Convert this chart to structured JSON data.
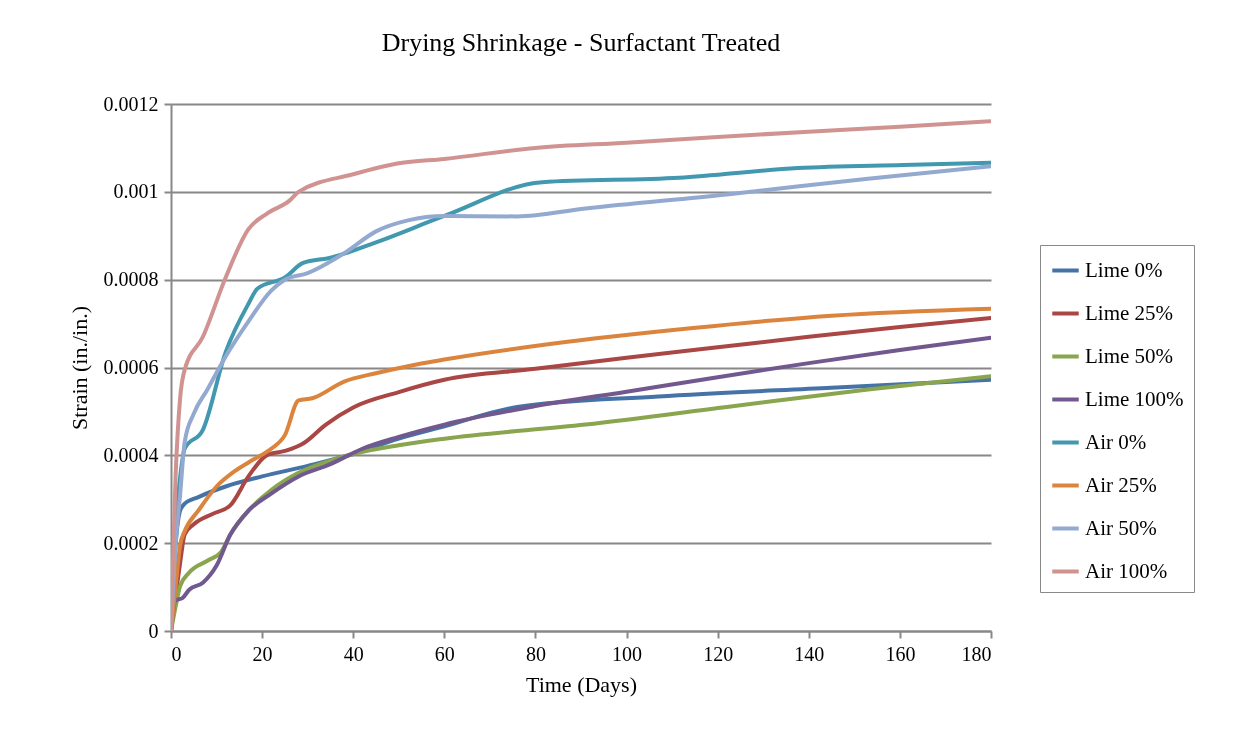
{
  "chart_data": {
    "type": "line",
    "title": "Drying Shrinkage - Surfactant Treated",
    "xlabel": "Time (Days)",
    "ylabel": "Strain (in./in.)",
    "xlim": [
      0,
      180
    ],
    "xticks": [
      0,
      20,
      40,
      60,
      80,
      100,
      120,
      140,
      160,
      180
    ],
    "ylim": [
      0,
      0.0012
    ],
    "yticks": [
      0,
      0.0002,
      0.0004,
      0.0006,
      0.0008,
      0.001,
      0.0012
    ],
    "grid": "y",
    "legend": "right",
    "marker": "none",
    "line_style": "solid",
    "series": [
      {
        "name": "Lime 0%",
        "color": "#4572a7",
        "x": [
          0,
          1,
          2,
          3,
          6,
          12,
          20,
          30,
          40,
          50,
          60,
          76,
          107,
          145,
          180
        ],
        "values": [
          0,
          0.000195,
          0.000274,
          0.00029,
          0.000305,
          0.000329,
          0.000352,
          0.000376,
          0.000403,
          0.000438,
          0.000466,
          0.00051,
          0.000534,
          0.000554,
          0.000572
        ]
      },
      {
        "name": "Lime 25%",
        "color": "#aa4643",
        "x": [
          0,
          1,
          2,
          3,
          5,
          9,
          13,
          17,
          21,
          25,
          29,
          34,
          40,
          50,
          60,
          80,
          100,
          120,
          140,
          160,
          180
        ],
        "values": [
          0,
          8e-05,
          0.000155,
          0.00022,
          0.000243,
          0.000266,
          0.000286,
          0.000352,
          0.0004,
          0.00041,
          0.000427,
          0.00047,
          0.000509,
          0.000544,
          0.000572,
          0.000597,
          0.000622,
          0.000646,
          0.00067,
          0.000692,
          0.000713
        ]
      },
      {
        "name": "Lime 50%",
        "color": "#89a54e",
        "x": [
          0,
          1,
          2,
          4,
          8,
          11,
          13,
          17,
          22,
          28,
          35,
          40,
          50,
          60,
          91,
          122,
          153,
          180
        ],
        "values": [
          0,
          5.5e-05,
          0.000102,
          0.000133,
          0.00016,
          0.00018,
          0.000219,
          0.000274,
          0.000321,
          0.00036,
          0.000388,
          0.000403,
          0.000423,
          0.000438,
          0.00047,
          0.00051,
          0.00055,
          0.00058
        ]
      },
      {
        "name": "Lime 100%",
        "color": "#71588f",
        "x": [
          0,
          1,
          2.5,
          4,
          7,
          10,
          13,
          17,
          22,
          28,
          35,
          42,
          50,
          60,
          80,
          100,
          120,
          140,
          160,
          180
        ],
        "values": [
          0,
          7e-05,
          7.5e-05,
          9.4e-05,
          0.00011,
          0.000149,
          0.000219,
          0.000274,
          0.000313,
          0.000352,
          0.00038,
          0.000415,
          0.000442,
          0.00047,
          0.000512,
          0.000545,
          0.000578,
          0.00061,
          0.00064,
          0.000668
        ]
      },
      {
        "name": "Air 0%",
        "color": "#4198af",
        "x": [
          0,
          1,
          2,
          3,
          7,
          12,
          17,
          19,
          25,
          29,
          35,
          45,
          60,
          81.5,
          111.5,
          137.6,
          160.7,
          180
        ],
        "values": [
          0,
          0.000235,
          0.00035,
          0.000415,
          0.000458,
          0.000635,
          0.000745,
          0.00078,
          0.000805,
          0.000838,
          0.00085,
          0.000885,
          0.000945,
          0.001022,
          0.001032,
          0.001054,
          0.001061,
          0.001066
        ]
      },
      {
        "name": "Air 25%",
        "color": "#db843d",
        "x": [
          0,
          1,
          2,
          3,
          6,
          10,
          14,
          18,
          22,
          25,
          28,
          31,
          38,
          45,
          52,
          60,
          83.6,
          114.6,
          145,
          180
        ],
        "values": [
          0,
          0.0001,
          0.000195,
          0.000227,
          0.000274,
          0.000329,
          0.000364,
          0.00039,
          0.000415,
          0.000446,
          0.000525,
          0.00053,
          0.000568,
          0.000587,
          0.000603,
          0.000618,
          0.000654,
          0.00069,
          0.000718,
          0.000734
        ]
      },
      {
        "name": "Air 50%",
        "color": "#93a9cf",
        "x": [
          0,
          1,
          2,
          3,
          5,
          8,
          12,
          17,
          22,
          25,
          30,
          38,
          45,
          52,
          60,
          76,
          91,
          122,
          153,
          180
        ],
        "values": [
          0,
          0.000195,
          0.00031,
          0.00043,
          0.000495,
          0.00055,
          0.000625,
          0.000705,
          0.000775,
          0.0008,
          0.000815,
          0.00086,
          0.00091,
          0.000935,
          0.000945,
          0.000944,
          0.000962,
          0.000994,
          0.00103,
          0.001058
        ]
      },
      {
        "name": "Air 100%",
        "color": "#d19392",
        "x": [
          0,
          1,
          2,
          3,
          7,
          12,
          17,
          21,
          26,
          28,
          40,
          50,
          60,
          80,
          100,
          120,
          140,
          160,
          180
        ],
        "values": [
          0,
          0.00035,
          0.00053,
          0.000595,
          0.00067,
          0.000805,
          0.000915,
          0.00095,
          0.00098,
          0.001,
          0.00104,
          0.001065,
          0.001075,
          0.0011,
          0.001112,
          0.001125,
          0.001137,
          0.001148,
          0.001161
        ]
      }
    ]
  }
}
